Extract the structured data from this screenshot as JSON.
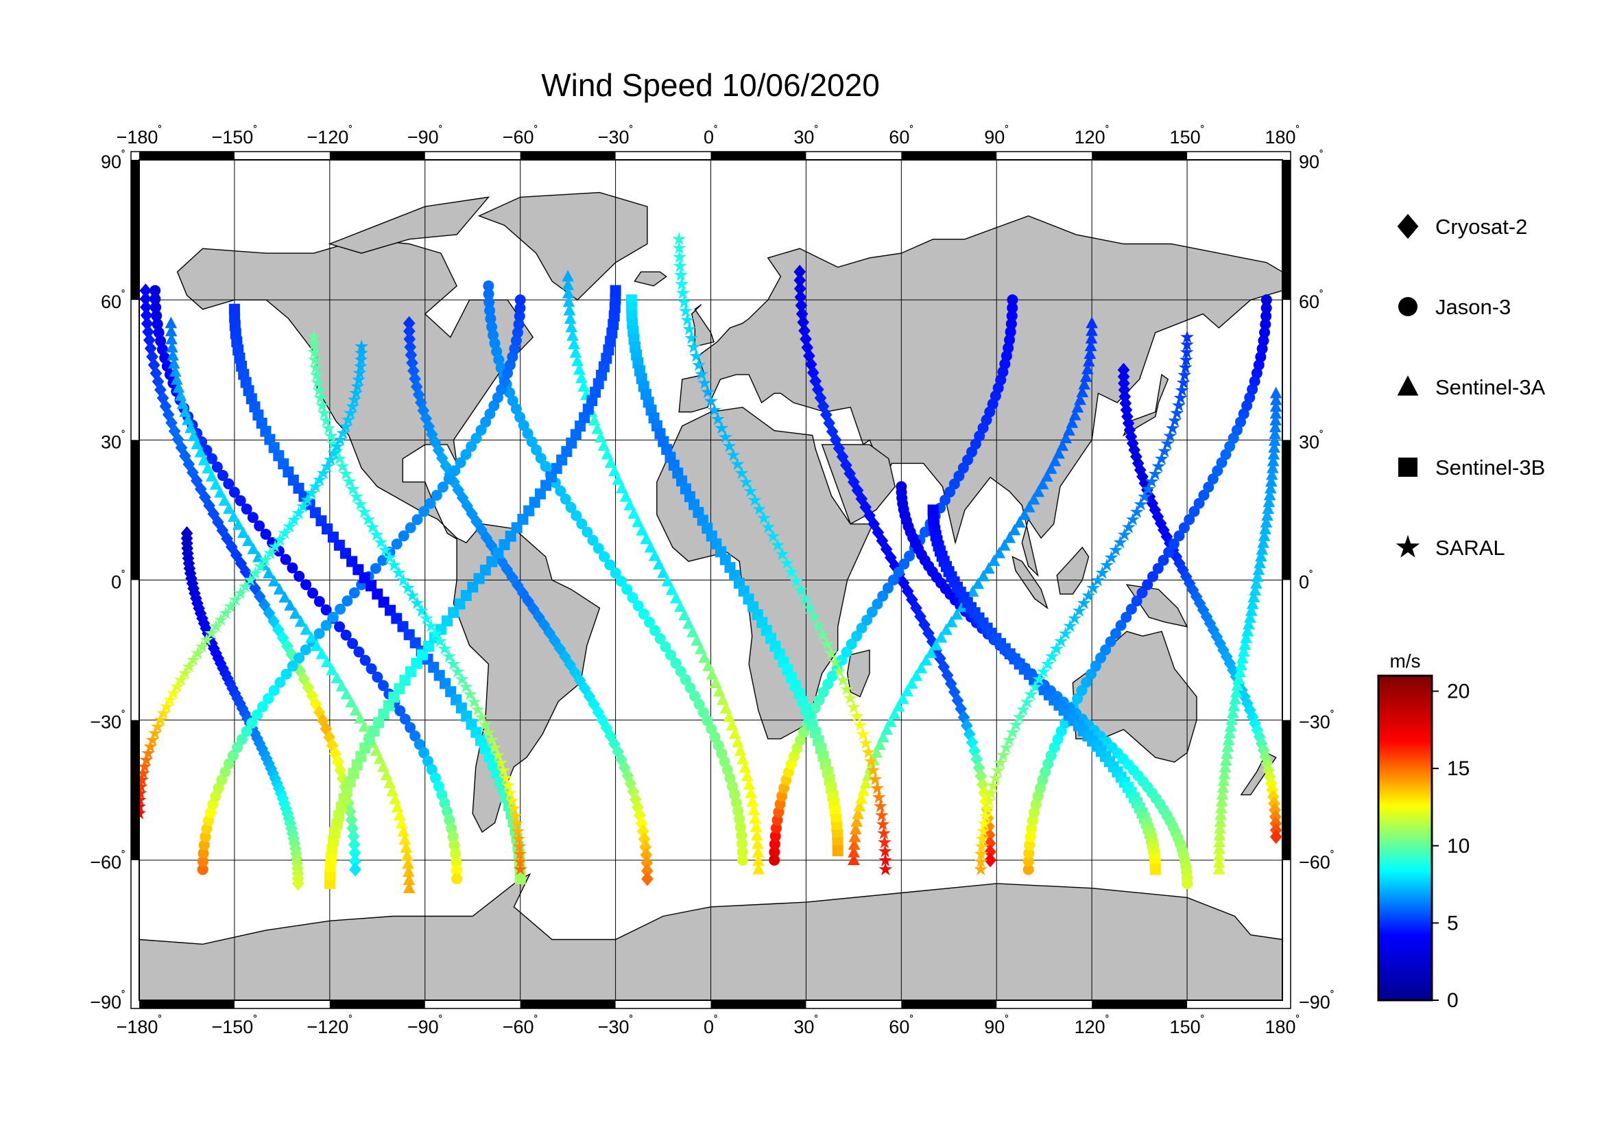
{
  "title": "Wind Speed 10/06/2020",
  "lon_ticks": [
    -180,
    -150,
    -120,
    -90,
    -60,
    -30,
    0,
    30,
    60,
    90,
    120,
    150,
    180
  ],
  "lat_ticks": [
    90,
    60,
    30,
    0,
    -30,
    -60,
    -90
  ],
  "degree_symbol": "˚",
  "minus_sign": "−",
  "legend": {
    "items": [
      {
        "label": "Cryosat-2",
        "symbol": "diamond-icon"
      },
      {
        "label": "Jason-3",
        "symbol": "circle-icon"
      },
      {
        "label": "Sentinel-3A",
        "symbol": "triangle-icon"
      },
      {
        "label": "Sentinel-3B",
        "symbol": "square-icon"
      },
      {
        "label": "SARAL",
        "symbol": "star-icon"
      }
    ]
  },
  "colorbar": {
    "unit": "m/s",
    "ticks": [
      0,
      5,
      10,
      15,
      20
    ],
    "range": [
      0,
      21
    ],
    "colors": [
      "#00008f",
      "#0000ff",
      "#00ffff",
      "#ffff00",
      "#ff0000",
      "#800000"
    ]
  },
  "colors": {
    "land": "#bebebe",
    "coastline": "#000000",
    "ocean": "#ffffff",
    "frame": "#000000"
  },
  "chart_data": {
    "type": "scatter",
    "title": "Wind Speed 10/06/2020",
    "xlabel": "",
    "ylabel": "",
    "xlim": [
      -180,
      180
    ],
    "ylim": [
      -90,
      90
    ],
    "projection": "equirectangular",
    "grid": true,
    "legend_position": "right",
    "color_scale": {
      "label": "m/s",
      "min": 0,
      "max": 21
    },
    "series": [
      {
        "name": "Cryosat-2",
        "marker": "diamond",
        "tracks": [
          {
            "start": [
              -178,
              62
            ],
            "end": [
              -112,
              -62
            ],
            "w": [
              4,
              6,
              5,
              14,
              8
            ]
          },
          {
            "start": [
              -95,
              55
            ],
            "end": [
              -20,
              -64
            ],
            "w": [
              5,
              7,
              6,
              9,
              15
            ]
          },
          {
            "start": [
              28,
              66
            ],
            "end": [
              88,
              -60
            ],
            "w": [
              3,
              5,
              4,
              6,
              17
            ]
          },
          {
            "start": [
              130,
              45
            ],
            "end": [
              178,
              -55
            ],
            "w": [
              4,
              3,
              6,
              8,
              16
            ]
          },
          {
            "start": [
              -165,
              10
            ],
            "end": [
              -130,
              -65
            ],
            "w": [
              2,
              4,
              7,
              12
            ]
          }
        ]
      },
      {
        "name": "Jason-3",
        "marker": "circle",
        "tracks": [
          {
            "start": [
              -175,
              62
            ],
            "end": [
              -80,
              -64
            ],
            "w": [
              3,
              5,
              4,
              6,
              13
            ]
          },
          {
            "start": [
              -70,
              63
            ],
            "end": [
              10,
              -60
            ],
            "w": [
              6,
              7,
              8,
              10,
              12
            ]
          },
          {
            "start": [
              20,
              -60
            ],
            "end": [
              95,
              60
            ],
            "w": [
              18,
              10,
              6,
              5,
              4
            ]
          },
          {
            "start": [
              100,
              -62
            ],
            "end": [
              175,
              60
            ],
            "w": [
              14,
              8,
              5,
              6,
              3
            ]
          },
          {
            "start": [
              -160,
              -62
            ],
            "end": [
              -60,
              60
            ],
            "w": [
              15,
              9,
              6,
              7,
              5
            ]
          },
          {
            "start": [
              60,
              20
            ],
            "end": [
              150,
              -65
            ],
            "w": [
              3,
              4,
              6,
              9,
              12
            ]
          }
        ]
      },
      {
        "name": "Sentinel-3A",
        "marker": "triangle",
        "tracks": [
          {
            "start": [
              -170,
              55
            ],
            "end": [
              -95,
              -66
            ],
            "w": [
              6,
              8,
              7,
              11,
              14
            ]
          },
          {
            "start": [
              -45,
              65
            ],
            "end": [
              15,
              -62
            ],
            "w": [
              7,
              9,
              8,
              12,
              13
            ]
          },
          {
            "start": [
              45,
              -60
            ],
            "end": [
              120,
              55
            ],
            "w": [
              16,
              9,
              7,
              6,
              5
            ]
          },
          {
            "start": [
              160,
              -62
            ],
            "end": [
              178,
              40
            ],
            "w": [
              12,
              8,
              6
            ]
          }
        ]
      },
      {
        "name": "Sentinel-3B",
        "marker": "square",
        "tracks": [
          {
            "start": [
              -150,
              58
            ],
            "end": [
              -60,
              -64
            ],
            "w": [
              5,
              6,
              4,
              8,
              11
            ]
          },
          {
            "start": [
              -25,
              60
            ],
            "end": [
              40,
              -58
            ],
            "w": [
              8,
              6,
              7,
              9,
              14
            ]
          },
          {
            "start": [
              70,
              15
            ],
            "end": [
              140,
              -62
            ],
            "w": [
              4,
              5,
              6,
              8,
              13
            ]
          },
          {
            "start": [
              -120,
              -65
            ],
            "end": [
              -30,
              62
            ],
            "w": [
              13,
              10,
              7,
              6,
              5
            ]
          }
        ]
      },
      {
        "name": "SARAL",
        "marker": "star",
        "tracks": [
          {
            "start": [
              -125,
              52
            ],
            "end": [
              -60,
              -62
            ],
            "w": [
              10,
              9,
              8,
              11,
              15
            ]
          },
          {
            "start": [
              -10,
              73
            ],
            "end": [
              55,
              -62
            ],
            "w": [
              9,
              7,
              8,
              12,
              17
            ]
          },
          {
            "start": [
              85,
              -62
            ],
            "end": [
              150,
              52
            ],
            "w": [
              14,
              10,
              7,
              6,
              5
            ]
          },
          {
            "start": [
              -180,
              -50
            ],
            "end": [
              -110,
              50
            ],
            "w": [
              17,
              11,
              8,
              7
            ]
          }
        ]
      }
    ]
  }
}
